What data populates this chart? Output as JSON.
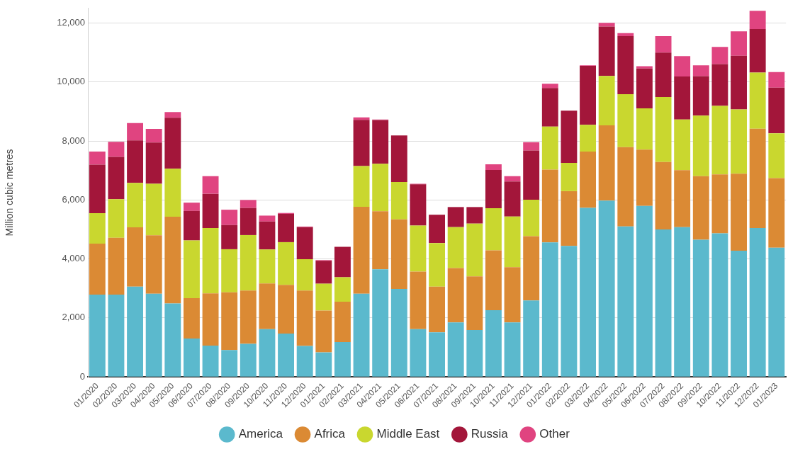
{
  "chart_data": {
    "type": "bar",
    "stacked": true,
    "ylabel": "Million cubic metres",
    "categories": [
      "01/2020",
      "02/2020",
      "03/2020",
      "04/2020",
      "05/2020",
      "06/2020",
      "07/2020",
      "08/2020",
      "09/2020",
      "10/2020",
      "11/2020",
      "12/2020",
      "01/2021",
      "02/2021",
      "03/2021",
      "04/2021",
      "05/2021",
      "06/2021",
      "07/2021",
      "08/2021",
      "09/2021",
      "10/2021",
      "11/2021",
      "12/2021",
      "01/2022",
      "02/2022",
      "03/2022",
      "04/2022",
      "05/2022",
      "06/2022",
      "07/2022",
      "08/2022",
      "09/2022",
      "10/2022",
      "11/2022",
      "12/2022",
      "01/2023"
    ],
    "series": [
      {
        "name": "America",
        "color": "#5bb9cd",
        "values": [
          2790,
          2790,
          3060,
          2820,
          2490,
          1300,
          1060,
          910,
          1120,
          1620,
          1470,
          1050,
          830,
          1180,
          2820,
          3650,
          2980,
          1620,
          1510,
          1850,
          1590,
          2260,
          1850,
          2590,
          4560,
          4440,
          5730,
          5980,
          5100,
          5800,
          5000,
          5080,
          4650,
          4870,
          4280,
          5050,
          4380
        ]
      },
      {
        "name": "Africa",
        "color": "#db8a34",
        "values": [
          1730,
          1930,
          2010,
          1980,
          2940,
          1370,
          1770,
          1960,
          1810,
          1550,
          1650,
          1880,
          1420,
          1370,
          2950,
          1970,
          2360,
          1950,
          1550,
          1840,
          1820,
          2030,
          1870,
          2180,
          2470,
          1860,
          1910,
          2550,
          2690,
          1910,
          2290,
          1930,
          2160,
          2000,
          2610,
          3370,
          2360
        ]
      },
      {
        "name": "Middle East",
        "color": "#c9d72f",
        "values": [
          1030,
          1310,
          1510,
          1750,
          1630,
          1960,
          2220,
          1460,
          1880,
          1150,
          1450,
          1060,
          910,
          830,
          1380,
          1610,
          1270,
          1560,
          1480,
          1390,
          1790,
          1430,
          1720,
          1240,
          1460,
          960,
          910,
          1680,
          1800,
          1400,
          2200,
          1720,
          2050,
          2320,
          2180,
          1900,
          1520
        ]
      },
      {
        "name": "Russia",
        "color": "#a3163a",
        "values": [
          1650,
          1430,
          1440,
          1400,
          1730,
          1000,
          1160,
          820,
          920,
          950,
          960,
          1090,
          780,
          1030,
          1570,
          1480,
          1580,
          1400,
          960,
          680,
          560,
          1300,
          1190,
          1670,
          1310,
          1770,
          2000,
          1670,
          1970,
          1350,
          1510,
          1460,
          1340,
          1420,
          1820,
          1480,
          1550
        ]
      },
      {
        "name": "Other",
        "color": "#e04480",
        "values": [
          440,
          510,
          590,
          460,
          190,
          280,
          600,
          520,
          270,
          200,
          30,
          20,
          20,
          0,
          80,
          20,
          0,
          20,
          0,
          0,
          0,
          190,
          180,
          280,
          140,
          0,
          20,
          130,
          100,
          80,
          560,
          690,
          370,
          580,
          830,
          620,
          530
        ]
      }
    ],
    "ylim": [
      0,
      12500
    ],
    "yticks": [
      0,
      {
        "value": 2000,
        "label": "2,000"
      },
      {
        "value": 4000,
        "label": "4,000"
      },
      {
        "value": 6000,
        "label": "6,000"
      },
      {
        "value": 8000,
        "label": "8,000"
      },
      {
        "value": 10000,
        "label": "10,000"
      },
      {
        "value": 12000,
        "label": "12,000"
      }
    ],
    "grid": "y",
    "legend": "bottom"
  }
}
